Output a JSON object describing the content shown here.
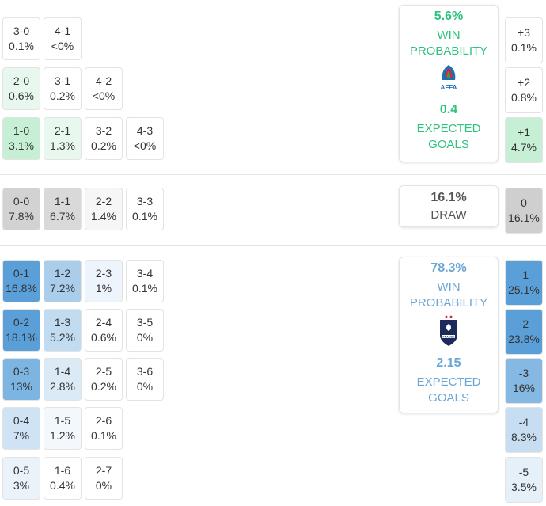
{
  "colors": {
    "home_accent": "#2ec27e",
    "away_accent": "#6aa6d6",
    "draw_accent": "#555555",
    "home_light": "#e8f8ee",
    "home_mid": "#c6efd6",
    "draw_dark": "#d2d2d2",
    "away_dark": "#5b9fd8",
    "away_mid": "#a9cdeb",
    "away_light": "#dbeaf7"
  },
  "home_scores": [
    {
      "score": "3-0",
      "pct": "0.1%"
    },
    {
      "score": "4-1",
      "pct": "<0%"
    },
    {
      "score": "2-0",
      "pct": "0.6%"
    },
    {
      "score": "3-1",
      "pct": "0.2%"
    },
    {
      "score": "4-2",
      "pct": "<0%"
    },
    {
      "score": "1-0",
      "pct": "3.1%"
    },
    {
      "score": "2-1",
      "pct": "1.3%"
    },
    {
      "score": "3-2",
      "pct": "0.2%"
    },
    {
      "score": "4-3",
      "pct": "<0%"
    }
  ],
  "draw_scores": [
    {
      "score": "0-0",
      "pct": "7.8%"
    },
    {
      "score": "1-1",
      "pct": "6.7%"
    },
    {
      "score": "2-2",
      "pct": "1.4%"
    },
    {
      "score": "3-3",
      "pct": "0.1%"
    }
  ],
  "away_scores": [
    {
      "score": "0-1",
      "pct": "16.8%"
    },
    {
      "score": "1-2",
      "pct": "7.2%"
    },
    {
      "score": "2-3",
      "pct": "1%"
    },
    {
      "score": "3-4",
      "pct": "0.1%"
    },
    {
      "score": "0-2",
      "pct": "18.1%"
    },
    {
      "score": "1-3",
      "pct": "5.2%"
    },
    {
      "score": "2-4",
      "pct": "0.6%"
    },
    {
      "score": "3-5",
      "pct": "0%"
    },
    {
      "score": "0-3",
      "pct": "13%"
    },
    {
      "score": "1-4",
      "pct": "2.8%"
    },
    {
      "score": "2-5",
      "pct": "0.2%"
    },
    {
      "score": "3-6",
      "pct": "0%"
    },
    {
      "score": "0-4",
      "pct": "7%"
    },
    {
      "score": "1-5",
      "pct": "1.2%"
    },
    {
      "score": "2-6",
      "pct": "0.1%"
    },
    {
      "score": "0-5",
      "pct": "3%"
    },
    {
      "score": "1-6",
      "pct": "0.4%"
    },
    {
      "score": "2-7",
      "pct": "0%"
    }
  ],
  "home_card": {
    "win_pct": "5.6%",
    "win_label_1": "WIN",
    "win_label_2": "PROBABILITY",
    "crest_text": "AFFA",
    "crest_icon": "affa-crest-icon",
    "xg": "0.4",
    "xg_label_1": "EXPECTED",
    "xg_label_2": "GOALS"
  },
  "draw_card": {
    "pct": "16.1%",
    "label": "DRAW"
  },
  "away_card": {
    "win_pct": "78.3%",
    "win_label_1": "WIN",
    "win_label_2": "PROBABILITY",
    "crest_text": "FRANCE",
    "crest_icon": "fff-crest-icon",
    "xg": "2.15",
    "xg_label_1": "EXPECTED",
    "xg_label_2": "GOALS"
  },
  "margins": [
    {
      "margin": "+3",
      "pct": "0.1%"
    },
    {
      "margin": "+2",
      "pct": "0.8%"
    },
    {
      "margin": "+1",
      "pct": "4.7%"
    },
    {
      "margin": "0",
      "pct": "16.1%"
    },
    {
      "margin": "-1",
      "pct": "25.1%"
    },
    {
      "margin": "-2",
      "pct": "23.8%"
    },
    {
      "margin": "-3",
      "pct": "16%"
    },
    {
      "margin": "-4",
      "pct": "8.3%"
    },
    {
      "margin": "-5",
      "pct": "3.5%"
    }
  ]
}
